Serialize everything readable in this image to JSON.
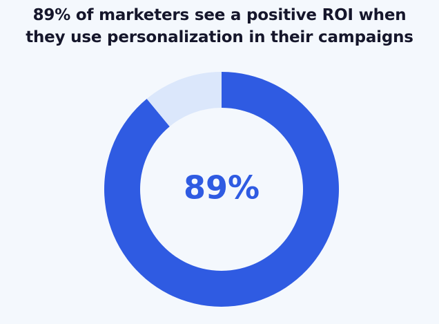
{
  "title_lines": [
    "89% of marketers see a positive ROI when",
    "they use personalization in their campaigns"
  ],
  "colors": {
    "background": "#f4f8fd",
    "title": "#15162b",
    "primary": "#2f5be2",
    "remainder": "#dbe7fb"
  },
  "chart_data": {
    "type": "pie",
    "subtype": "donut",
    "title": "89% of marketers see a positive ROI when they use personalization in their campaigns",
    "slices": [
      {
        "label": "",
        "value": 89,
        "color": "#2f5be2"
      },
      {
        "label": "",
        "value": 11,
        "color": "#dbe7fb"
      }
    ],
    "center_label": "89%",
    "legend": "none"
  }
}
